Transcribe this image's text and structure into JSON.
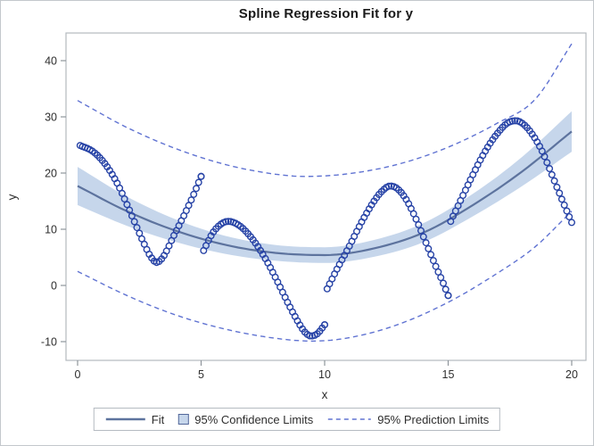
{
  "title": "Spline Regression Fit for y",
  "axes": {
    "x": {
      "label": "x",
      "ticks": [
        "0",
        "5",
        "10",
        "15",
        "20"
      ]
    },
    "y": {
      "label": "y",
      "ticks": [
        "-10",
        "0",
        "10",
        "20",
        "30",
        "40"
      ]
    }
  },
  "legend": {
    "items": [
      {
        "label": "Fit",
        "swatch": "line"
      },
      {
        "label": "95% Confidence Limits",
        "swatch": "band"
      },
      {
        "label": "95% Prediction Limits",
        "swatch": "dashed-line"
      }
    ]
  },
  "colors": {
    "scatter": "#2743a6",
    "fit": "#5d739e",
    "band": "#c6d6eb",
    "band_swatch_border": "#53689a",
    "prediction": "#6073d2",
    "frame": "#b3b9bf",
    "tick": "#8e959b",
    "text": "#2e2e2e"
  },
  "chart_data": {
    "type": "scatter",
    "title": "Spline Regression Fit for y",
    "xlabel": "x",
    "ylabel": "y",
    "xlim": [
      -0.47,
      20.58
    ],
    "ylim": [
      -13.3,
      44.9
    ],
    "x_ticks": [
      0,
      5,
      10,
      15,
      20
    ],
    "y_ticks": [
      -10,
      0,
      10,
      20,
      30,
      40
    ],
    "grid": false,
    "legend_position": "bottom",
    "marker": "open-circle",
    "point_step_x": 0.1,
    "scatter_branch_knots": [
      [
        [
          0.1,
          24.9
        ],
        [
          0.6,
          23.9
        ],
        [
          1.1,
          21.7
        ],
        [
          1.6,
          18.2
        ],
        [
          2.1,
          13.4
        ],
        [
          2.6,
          8.3
        ],
        [
          2.95,
          5.2
        ],
        [
          3.2,
          4.1
        ],
        [
          3.45,
          5.0
        ],
        [
          3.9,
          8.9
        ],
        [
          4.3,
          12.4
        ],
        [
          4.65,
          15.7
        ],
        [
          5.0,
          19.4
        ]
      ],
      [
        [
          5.1,
          6.2
        ],
        [
          5.45,
          9.2
        ],
        [
          5.8,
          10.9
        ],
        [
          6.1,
          11.4
        ],
        [
          6.5,
          10.8
        ],
        [
          6.9,
          9.2
        ],
        [
          7.3,
          6.9
        ],
        [
          7.7,
          4.0
        ],
        [
          8.1,
          0.6
        ],
        [
          8.5,
          -3.0
        ],
        [
          8.9,
          -6.3
        ],
        [
          9.2,
          -8.3
        ],
        [
          9.45,
          -9.0
        ],
        [
          9.7,
          -8.6
        ],
        [
          10.0,
          -7.0
        ]
      ],
      [
        [
          10.1,
          -0.6
        ],
        [
          10.5,
          2.9
        ],
        [
          11.0,
          7.0
        ],
        [
          11.5,
          11.3
        ],
        [
          12.0,
          15.0
        ],
        [
          12.35,
          16.9
        ],
        [
          12.65,
          17.7
        ],
        [
          12.95,
          17.2
        ],
        [
          13.3,
          15.3
        ],
        [
          13.7,
          11.8
        ],
        [
          14.1,
          7.6
        ],
        [
          14.5,
          3.4
        ],
        [
          14.8,
          0.4
        ],
        [
          15.0,
          -1.8
        ]
      ],
      [
        [
          15.1,
          11.4
        ],
        [
          15.5,
          15.1
        ],
        [
          16.0,
          19.7
        ],
        [
          16.5,
          23.9
        ],
        [
          17.0,
          27.1
        ],
        [
          17.4,
          28.9
        ],
        [
          17.75,
          29.3
        ],
        [
          18.1,
          28.5
        ],
        [
          18.45,
          26.6
        ],
        [
          18.8,
          23.9
        ],
        [
          19.1,
          20.8
        ],
        [
          19.4,
          17.5
        ],
        [
          19.7,
          14.3
        ],
        [
          20.0,
          11.2
        ]
      ]
    ],
    "fit_knots": [
      [
        0,
        17.7
      ],
      [
        2,
        13.2
      ],
      [
        4,
        9.7
      ],
      [
        6,
        7.2
      ],
      [
        8,
        5.8
      ],
      [
        10,
        5.4
      ],
      [
        12,
        6.6
      ],
      [
        14,
        9.4
      ],
      [
        16,
        14.3
      ],
      [
        18,
        20.3
      ],
      [
        20,
        27.4
      ]
    ],
    "ci_upper_knots": [
      [
        0,
        21.1
      ],
      [
        2,
        15.8
      ],
      [
        4,
        11.7
      ],
      [
        6,
        8.8
      ],
      [
        8,
        7.2
      ],
      [
        10,
        6.8
      ],
      [
        12,
        8.1
      ],
      [
        14,
        11.1
      ],
      [
        16,
        16.3
      ],
      [
        18,
        22.9
      ],
      [
        20,
        31.0
      ]
    ],
    "ci_lower_knots": [
      [
        0,
        14.3
      ],
      [
        2,
        10.6
      ],
      [
        4,
        7.7
      ],
      [
        6,
        5.6
      ],
      [
        8,
        4.4
      ],
      [
        10,
        4.0
      ],
      [
        12,
        5.1
      ],
      [
        14,
        7.7
      ],
      [
        16,
        12.3
      ],
      [
        18,
        17.7
      ],
      [
        20,
        23.8
      ]
    ],
    "pred_upper_knots": [
      [
        0,
        32.9
      ],
      [
        2,
        28.1
      ],
      [
        4,
        24.3
      ],
      [
        6,
        21.5
      ],
      [
        8,
        19.8
      ],
      [
        9.2,
        19.4
      ],
      [
        11,
        19.9
      ],
      [
        13,
        21.6
      ],
      [
        15,
        24.6
      ],
      [
        17,
        28.9
      ],
      [
        18.5,
        33.0
      ],
      [
        20,
        43.0
      ]
    ],
    "pred_lower_knots": [
      [
        0,
        2.5
      ],
      [
        2,
        -1.8
      ],
      [
        4,
        -5.3
      ],
      [
        6,
        -7.8
      ],
      [
        8,
        -9.4
      ],
      [
        9.5,
        -9.9
      ],
      [
        11,
        -9.3
      ],
      [
        13,
        -6.9
      ],
      [
        15,
        -3.0
      ],
      [
        17,
        2.2
      ],
      [
        18.5,
        6.8
      ],
      [
        20,
        13.2
      ]
    ]
  }
}
